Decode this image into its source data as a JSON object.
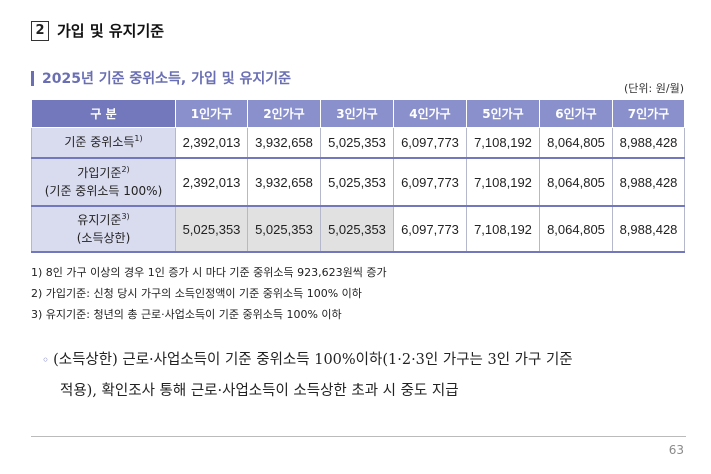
{
  "section": {
    "number": "2",
    "title": "가입 및 유지기준"
  },
  "subtitle": "2025년 기준 중위소득, 가입 및 유지기준",
  "unit": "(단위: 원/월)",
  "table": {
    "header": [
      "구 분",
      "1인가구",
      "2인가구",
      "3인가구",
      "4인가구",
      "5인가구",
      "6인가구",
      "7인가구"
    ],
    "rows": [
      {
        "label_line1": "기준 중위소득",
        "note": "1)",
        "label_line2": "",
        "values": [
          "2,392,013",
          "3,932,658",
          "5,025,353",
          "6,097,773",
          "7,108,192",
          "8,064,805",
          "8,988,428"
        ]
      },
      {
        "label_line1": "가입기준",
        "note": "2)",
        "label_line2": "(기준 중위소득 100%)",
        "values": [
          "2,392,013",
          "3,932,658",
          "5,025,353",
          "6,097,773",
          "7,108,192",
          "8,064,805",
          "8,988,428"
        ]
      },
      {
        "label_line1": "유지기준",
        "note": "3)",
        "label_line2": "(소득상한)",
        "values": [
          "5,025,353",
          "5,025,353",
          "5,025,353",
          "6,097,773",
          "7,108,192",
          "8,064,805",
          "8,988,428"
        ]
      }
    ]
  },
  "notes": [
    "1) 8인 가구 이상의 경우 1인 증가 시 마다 기준 중위소득 923,623원씩 증가",
    "2) 가입기준: 신청 당시 가구의 소득인정액이 기준 중위소득 100% 이하",
    "3) 유지기준: 청년의 총 근로·사업소득이 기준 중위소득 100% 이하"
  ],
  "body": {
    "bullet": "◦",
    "line1": "(소득상한) 근로·사업소득이 기준 중위소득 100%이하(1·2·3인 가구는 3인 가구 기준",
    "line2": "적용), 확인조사 통해 근로·사업소득이 소득상한 초과 시 중도 지급"
  },
  "page_number": "63"
}
